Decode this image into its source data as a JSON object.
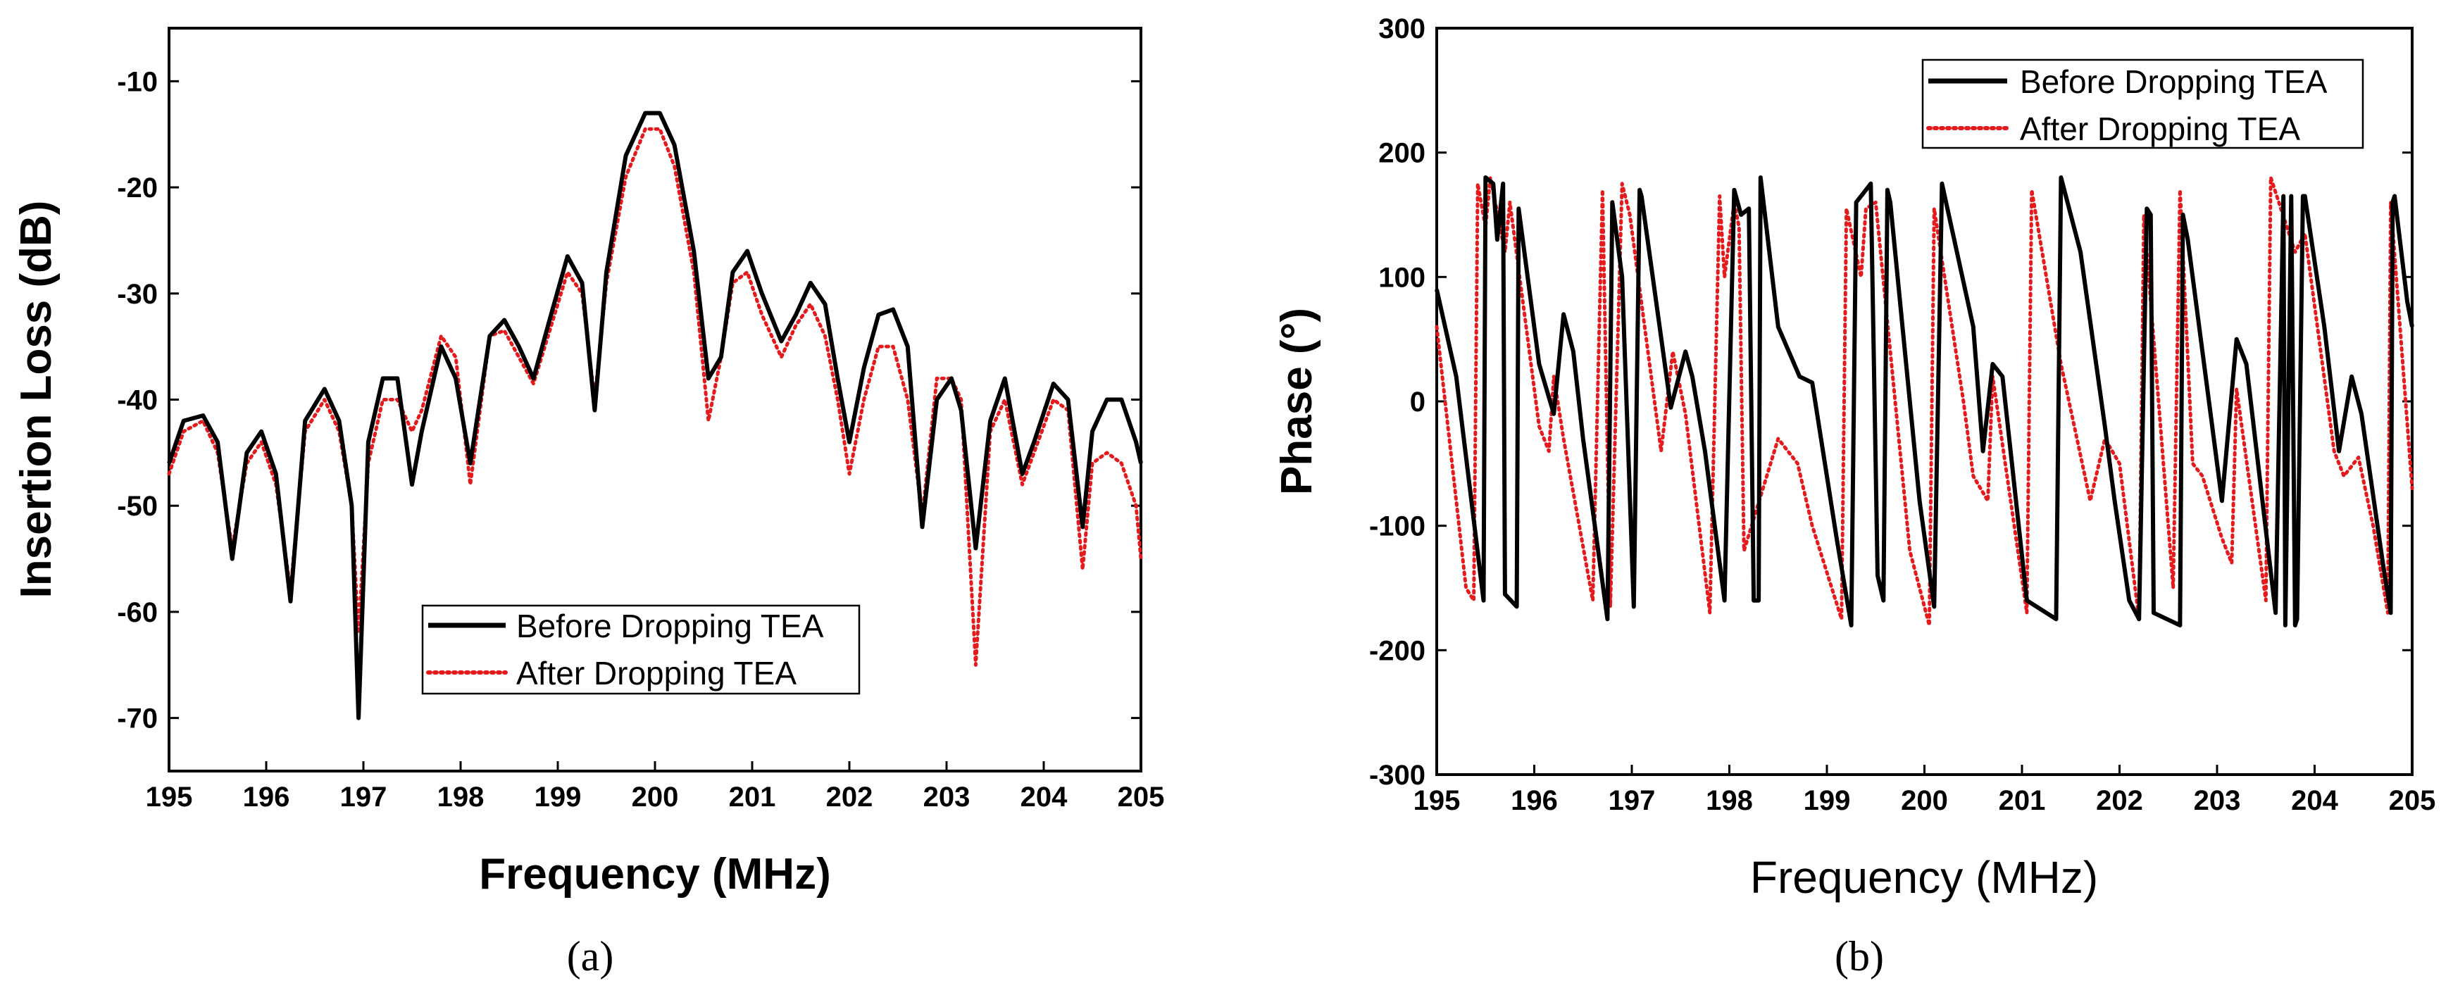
{
  "chart_data": [
    {
      "type": "line",
      "panel_label": "(a)",
      "xlabel": "Frequency (MHz)",
      "ylabel": "Insertion Loss (dB)",
      "xlim": [
        195,
        205
      ],
      "ylim": [
        -75,
        -5
      ],
      "xticks": [
        195,
        196,
        197,
        198,
        199,
        200,
        201,
        202,
        203,
        204,
        205
      ],
      "yticks": [
        -70,
        -60,
        -50,
        -40,
        -30,
        -20,
        -10
      ],
      "legend_position": "lower-center",
      "series": [
        {
          "name": "Before Dropping TEA",
          "color": "#000000",
          "style": "solid",
          "x": [
            195.0,
            195.15,
            195.35,
            195.5,
            195.65,
            195.8,
            195.95,
            196.1,
            196.25,
            196.4,
            196.6,
            196.75,
            196.88,
            196.95,
            197.05,
            197.2,
            197.35,
            197.5,
            197.6,
            197.8,
            197.95,
            198.1,
            198.2,
            198.3,
            198.45,
            198.6,
            198.75,
            198.9,
            199.1,
            199.25,
            199.38,
            199.5,
            199.7,
            199.9,
            200.05,
            200.2,
            200.4,
            200.55,
            200.68,
            200.8,
            200.95,
            201.1,
            201.3,
            201.45,
            201.6,
            201.75,
            201.88,
            202.0,
            202.15,
            202.3,
            202.45,
            202.6,
            202.75,
            202.9,
            203.05,
            203.15,
            203.3,
            203.45,
            203.6,
            203.78,
            203.9,
            204.1,
            204.25,
            204.4,
            204.5,
            204.65,
            204.8,
            204.95,
            205.0
          ],
          "values": [
            -46,
            -42,
            -41.5,
            -44,
            -55,
            -45,
            -43,
            -47,
            -59,
            -42,
            -39,
            -42,
            -50,
            -70,
            -44,
            -38,
            -38,
            -48,
            -43,
            -35,
            -38,
            -46,
            -40,
            -34,
            -32.5,
            -35,
            -38,
            -33,
            -26.5,
            -29,
            -41,
            -28,
            -17,
            -13,
            -13,
            -16,
            -26,
            -38,
            -36,
            -28,
            -26,
            -30,
            -34.5,
            -32,
            -29,
            -31,
            -38,
            -44,
            -37,
            -32,
            -31.5,
            -35,
            -52,
            -40,
            -38,
            -41,
            -54,
            -42,
            -38,
            -47,
            -44,
            -38.5,
            -40,
            -52,
            -43,
            -40,
            -40,
            -44,
            -46
          ]
        },
        {
          "name": "After Dropping TEA",
          "color": "#e41a1c",
          "style": "dotted",
          "x": [
            195.0,
            195.15,
            195.35,
            195.5,
            195.65,
            195.8,
            195.95,
            196.1,
            196.25,
            196.4,
            196.6,
            196.75,
            196.88,
            196.95,
            197.05,
            197.2,
            197.35,
            197.5,
            197.6,
            197.8,
            197.95,
            198.1,
            198.2,
            198.3,
            198.45,
            198.6,
            198.75,
            198.9,
            199.1,
            199.25,
            199.38,
            199.5,
            199.7,
            199.9,
            200.05,
            200.2,
            200.4,
            200.55,
            200.68,
            200.8,
            200.95,
            201.1,
            201.3,
            201.45,
            201.6,
            201.75,
            201.88,
            202.0,
            202.15,
            202.3,
            202.45,
            202.6,
            202.75,
            202.9,
            203.05,
            203.15,
            203.3,
            203.45,
            203.6,
            203.78,
            203.9,
            204.1,
            204.25,
            204.4,
            204.5,
            204.65,
            204.8,
            204.95,
            205.0
          ],
          "values": [
            -47,
            -43,
            -42,
            -45,
            -54,
            -46,
            -44,
            -48,
            -58,
            -43,
            -40,
            -43,
            -50,
            -62,
            -46,
            -40,
            -40,
            -43,
            -41,
            -34,
            -36,
            -48,
            -41,
            -34,
            -33.5,
            -36,
            -38.5,
            -34,
            -28,
            -30,
            -40,
            -29,
            -19,
            -14.5,
            -14.5,
            -18,
            -28,
            -42,
            -36,
            -29,
            -28,
            -32,
            -36,
            -33,
            -31,
            -34,
            -40,
            -47,
            -40,
            -35,
            -35,
            -40,
            -51,
            -38,
            -38,
            -40,
            -65,
            -43,
            -40,
            -48,
            -45,
            -40,
            -41,
            -56,
            -46,
            -45,
            -46,
            -50,
            -55
          ]
        }
      ]
    },
    {
      "type": "line",
      "panel_label": "(b)",
      "xlabel": "Frequency (MHz)",
      "ylabel": "Phase (°)",
      "xlim": [
        195,
        205
      ],
      "ylim": [
        -300,
        300
      ],
      "xticks": [
        195,
        196,
        197,
        198,
        199,
        200,
        201,
        202,
        203,
        204,
        205
      ],
      "yticks": [
        -300,
        -200,
        -100,
        0,
        100,
        200,
        300
      ],
      "legend_position": "top-right",
      "series": [
        {
          "name": "Before Dropping TEA",
          "color": "#000000",
          "style": "solid",
          "x": [
            195.0,
            195.2,
            195.48,
            195.5,
            195.58,
            195.62,
            195.68,
            195.7,
            195.82,
            195.84,
            196.05,
            196.2,
            196.3,
            196.4,
            196.5,
            196.75,
            196.8,
            196.9,
            197.02,
            197.08,
            197.1,
            197.4,
            197.55,
            197.62,
            197.75,
            197.95,
            198.05,
            198.12,
            198.2,
            198.25,
            198.3,
            198.32,
            198.5,
            198.72,
            198.85,
            199.1,
            199.25,
            199.3,
            199.4,
            199.45,
            199.52,
            199.58,
            199.62,
            199.65,
            199.95,
            200.1,
            200.18,
            200.5,
            200.6,
            200.7,
            200.8,
            201.05,
            201.35,
            201.4,
            201.6,
            201.85,
            201.95,
            202.1,
            202.2,
            202.28,
            202.32,
            202.35,
            202.62,
            202.65,
            202.7,
            202.95,
            203.05,
            203.2,
            203.3,
            203.6,
            203.68,
            203.7,
            203.76,
            203.8,
            203.82,
            203.88,
            203.9,
            204.1,
            204.25,
            204.38,
            204.48,
            204.7,
            204.78,
            204.8,
            204.82,
            204.95,
            205.0
          ],
          "values": [
            90,
            20,
            -160,
            180,
            175,
            130,
            175,
            -155,
            -165,
            155,
            30,
            -10,
            70,
            40,
            -30,
            -175,
            160,
            100,
            -165,
            170,
            165,
            -5,
            40,
            20,
            -40,
            -160,
            170,
            150,
            155,
            -160,
            -160,
            180,
            60,
            20,
            15,
            -110,
            -180,
            160,
            170,
            175,
            -140,
            -160,
            170,
            160,
            -80,
            -165,
            175,
            60,
            -40,
            30,
            20,
            -160,
            -175,
            180,
            120,
            -20,
            -80,
            -160,
            -175,
            155,
            150,
            -170,
            -180,
            150,
            130,
            -20,
            -80,
            50,
            30,
            -170,
            165,
            -180,
            165,
            -180,
            -175,
            165,
            165,
            60,
            -40,
            20,
            -10,
            -130,
            -170,
            160,
            165,
            80,
            60
          ]
        },
        {
          "name": "After Dropping TEA",
          "color": "#e41a1c",
          "style": "dotted",
          "x": [
            195.0,
            195.3,
            195.38,
            195.42,
            195.5,
            195.55,
            195.7,
            195.75,
            196.05,
            196.15,
            196.2,
            196.3,
            196.6,
            196.7,
            196.78,
            196.9,
            196.98,
            197.3,
            197.42,
            197.55,
            197.8,
            197.9,
            197.95,
            198.05,
            198.1,
            198.15,
            198.5,
            198.7,
            198.85,
            199.15,
            199.2,
            199.35,
            199.4,
            199.5,
            199.85,
            200.05,
            200.1,
            200.4,
            200.5,
            200.65,
            200.7,
            201.05,
            201.1,
            201.4,
            201.7,
            201.85,
            202.0,
            202.2,
            202.25,
            202.55,
            202.62,
            202.75,
            202.85,
            203.05,
            203.15,
            203.2,
            203.5,
            203.55,
            203.8,
            203.9,
            204.2,
            204.3,
            204.45,
            204.6,
            204.75,
            204.78,
            205.0
          ],
          "values": [
            60,
            -150,
            -160,
            175,
            140,
            180,
            120,
            160,
            -20,
            -40,
            20,
            -30,
            -160,
            170,
            -165,
            175,
            150,
            -40,
            40,
            -10,
            -170,
            165,
            100,
            160,
            140,
            -120,
            -30,
            -50,
            -100,
            -175,
            155,
            100,
            155,
            160,
            -120,
            -180,
            155,
            0,
            -60,
            -80,
            20,
            -170,
            170,
            30,
            -80,
            -30,
            -50,
            -175,
            150,
            -150,
            170,
            -50,
            -60,
            -110,
            -130,
            10,
            -160,
            180,
            120,
            135,
            -40,
            -60,
            -45,
            -100,
            -170,
            160,
            -70
          ]
        }
      ]
    }
  ]
}
